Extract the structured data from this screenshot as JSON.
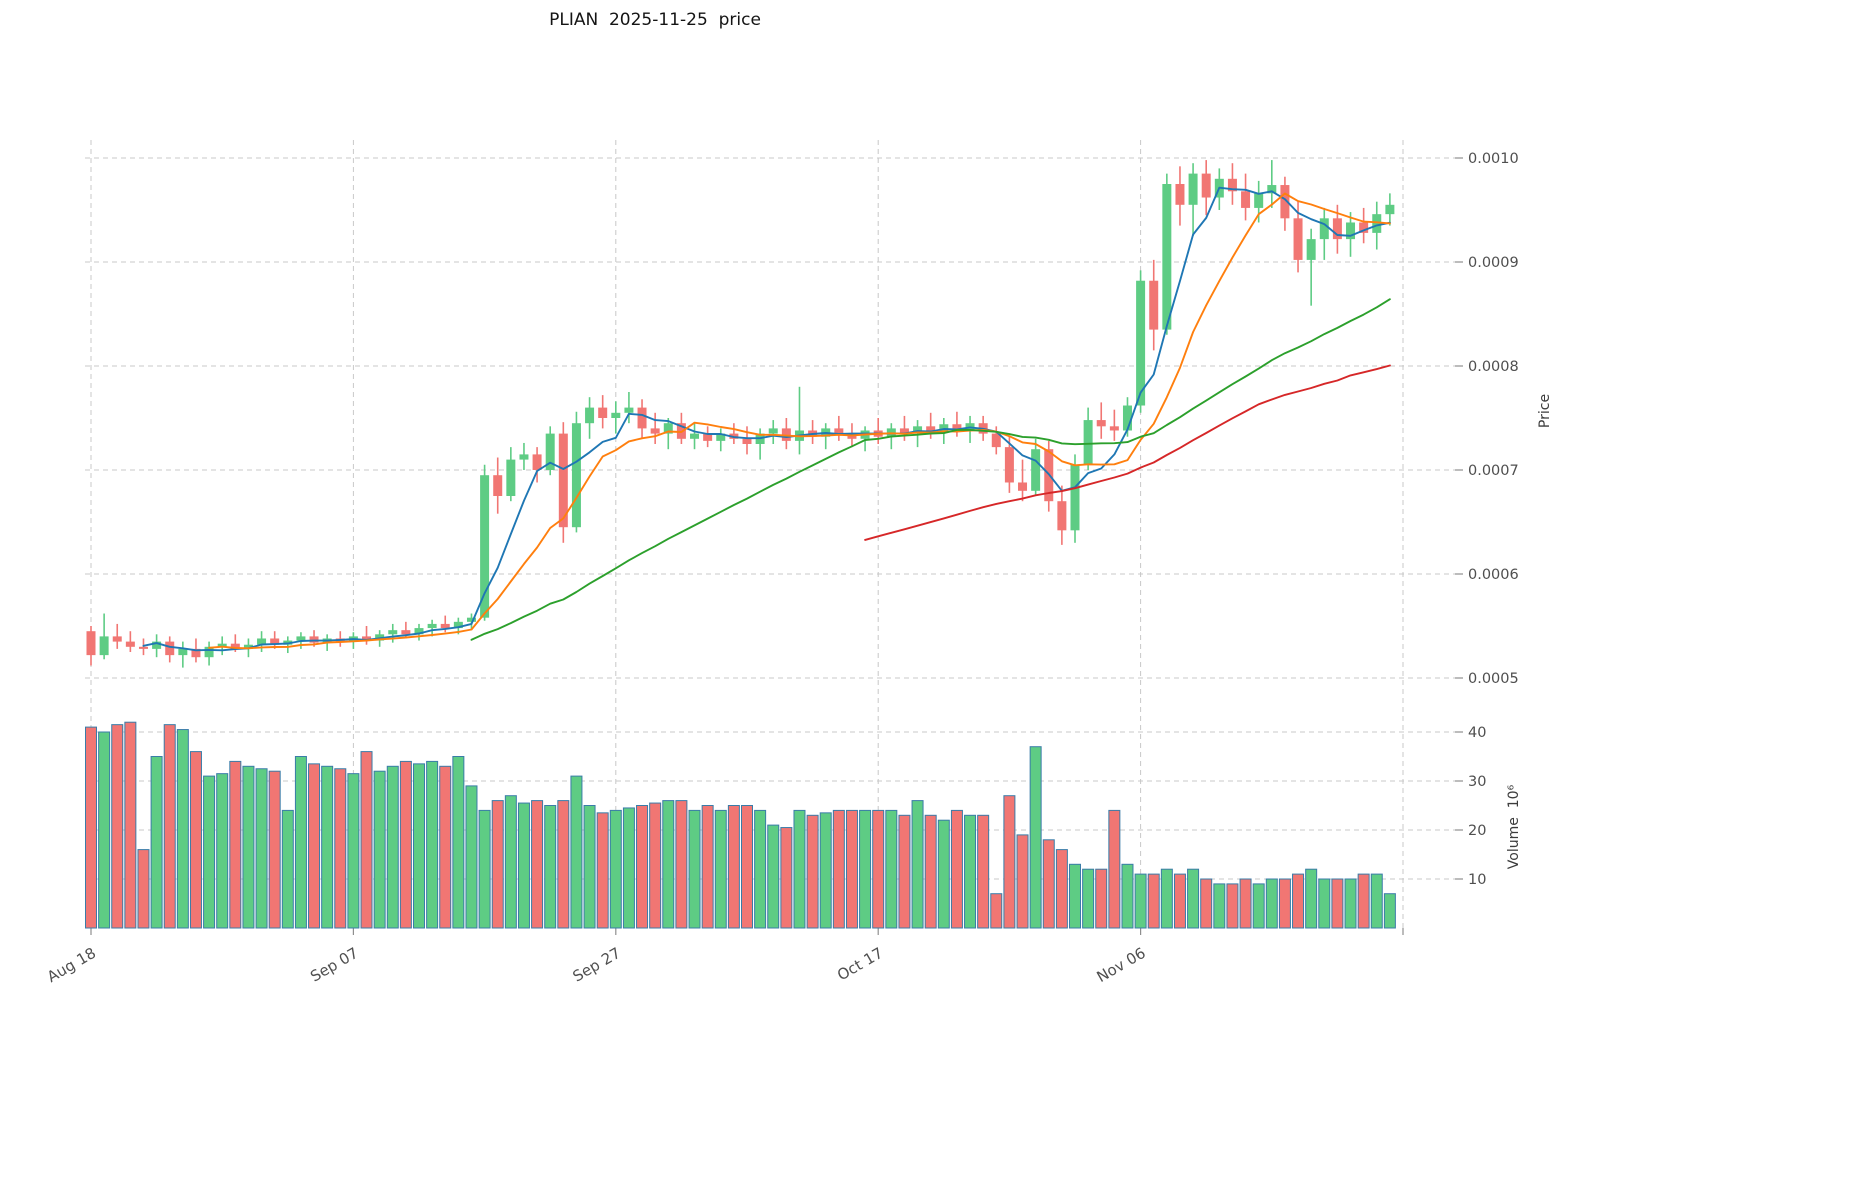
{
  "title": "PLIAN  2025-11-25  price",
  "colors": {
    "background": "#ffffff",
    "grid": "#c8c8c8",
    "tick_text": "#4f4f4f",
    "title_text": "#141414"
  },
  "chart_data": [
    {
      "type": "candlestick",
      "title": "PLIAN  2025-11-25  price",
      "ylabel": "Price",
      "up_color": "#5ecc84",
      "down_color": "#f17673",
      "grid": true,
      "y_tick_labels": [
        "0.0005",
        "0.0006",
        "0.0007",
        "0.0008",
        "0.0009",
        "0.0010"
      ],
      "y_tick_values": [
        0.0005,
        0.0006,
        0.0007,
        0.0008,
        0.0009,
        0.001
      ],
      "ylim": [
        0.000488,
        0.001022
      ],
      "x_ticks": [
        {
          "index": 0,
          "label": "Aug 18"
        },
        {
          "index": 20,
          "label": "Sep 07"
        },
        {
          "index": 40,
          "label": "Sep 27"
        },
        {
          "index": 60,
          "label": "Oct 17"
        },
        {
          "index": 80,
          "label": "Nov 06"
        },
        {
          "index": 100,
          "label": ""
        }
      ],
      "moving_averages": [
        {
          "window": 5,
          "color": "#1f77b4"
        },
        {
          "window": 10,
          "color": "#ff7f0e"
        },
        {
          "window": 30,
          "color": "#2ca02c"
        },
        {
          "window": 60,
          "color": "#d62728"
        }
      ],
      "open": [
        0.000545,
        0.000522,
        0.00054,
        0.000535,
        0.00053,
        0.000528,
        0.000535,
        0.000522,
        0.000528,
        0.00052,
        0.00053,
        0.000533,
        0.000528,
        0.000532,
        0.000538,
        0.000532,
        0.000536,
        0.00054,
        0.000534,
        0.000538,
        0.000535,
        0.00054,
        0.000536,
        0.000542,
        0.000546,
        0.000542,
        0.000548,
        0.000552,
        0.000548,
        0.000554,
        0.000558,
        0.000695,
        0.000675,
        0.00071,
        0.000715,
        0.0007,
        0.000735,
        0.000645,
        0.000745,
        0.00076,
        0.00075,
        0.000755,
        0.00076,
        0.00074,
        0.000735,
        0.000745,
        0.00073,
        0.000735,
        0.000728,
        0.000735,
        0.00073,
        0.000725,
        0.000735,
        0.00074,
        0.000728,
        0.000738,
        0.000732,
        0.00074,
        0.000735,
        0.00073,
        0.000738,
        0.000732,
        0.00074,
        0.000735,
        0.000742,
        0.000736,
        0.000744,
        0.000738,
        0.000745,
        0.000735,
        0.000722,
        0.000688,
        0.00068,
        0.00072,
        0.00067,
        0.000642,
        0.000705,
        0.000748,
        0.000742,
        0.000738,
        0.000762,
        0.000882,
        0.000835,
        0.000975,
        0.000955,
        0.000985,
        0.000962,
        0.00098,
        0.000968,
        0.000952,
        0.000966,
        0.000974,
        0.000942,
        0.000902,
        0.000922,
        0.000942,
        0.000922,
        0.000938,
        0.000928,
        0.000946
      ],
      "high": [
        0.00055,
        0.000562,
        0.000552,
        0.000545,
        0.000538,
        0.000542,
        0.00054,
        0.000535,
        0.000538,
        0.000535,
        0.00054,
        0.000542,
        0.000538,
        0.000545,
        0.000545,
        0.00054,
        0.000544,
        0.000546,
        0.000542,
        0.000545,
        0.000544,
        0.00055,
        0.000546,
        0.000552,
        0.000554,
        0.000552,
        0.000556,
        0.00056,
        0.000558,
        0.000562,
        0.000705,
        0.000712,
        0.000722,
        0.000726,
        0.000722,
        0.000742,
        0.000746,
        0.000756,
        0.00077,
        0.000772,
        0.000766,
        0.000775,
        0.000768,
        0.000755,
        0.00075,
        0.000755,
        0.000745,
        0.000742,
        0.00074,
        0.000745,
        0.000742,
        0.00074,
        0.000748,
        0.00075,
        0.00078,
        0.000748,
        0.000745,
        0.000752,
        0.000745,
        0.000742,
        0.00075,
        0.000745,
        0.000752,
        0.000748,
        0.000755,
        0.00075,
        0.000756,
        0.000752,
        0.000752,
        0.000742,
        0.000732,
        0.00071,
        0.00073,
        0.000728,
        0.000685,
        0.000715,
        0.00076,
        0.000765,
        0.000758,
        0.00077,
        0.000892,
        0.000902,
        0.000985,
        0.000992,
        0.000995,
        0.000998,
        0.00099,
        0.000995,
        0.000985,
        0.000978,
        0.000998,
        0.000982,
        0.000958,
        0.000932,
        0.000952,
        0.000955,
        0.000948,
        0.000952,
        0.000958,
        0.000966
      ],
      "low": [
        0.000512,
        0.000518,
        0.000528,
        0.000525,
        0.000522,
        0.00052,
        0.000515,
        0.00051,
        0.000515,
        0.000512,
        0.000522,
        0.000525,
        0.00052,
        0.000525,
        0.000528,
        0.000524,
        0.000528,
        0.00053,
        0.000526,
        0.00053,
        0.000528,
        0.000532,
        0.00053,
        0.000534,
        0.000538,
        0.000536,
        0.00054,
        0.000544,
        0.000542,
        0.000546,
        0.000555,
        0.000658,
        0.00067,
        0.0007,
        0.000688,
        0.000695,
        0.00063,
        0.00064,
        0.00073,
        0.00074,
        0.000735,
        0.000745,
        0.00073,
        0.000725,
        0.00072,
        0.000725,
        0.00072,
        0.000722,
        0.000718,
        0.000725,
        0.000715,
        0.00071,
        0.000725,
        0.00072,
        0.000715,
        0.000725,
        0.00072,
        0.000728,
        0.000722,
        0.000718,
        0.000725,
        0.00072,
        0.000728,
        0.000722,
        0.00073,
        0.000725,
        0.000732,
        0.000726,
        0.000728,
        0.000715,
        0.000678,
        0.00067,
        0.000675,
        0.00066,
        0.000628,
        0.00063,
        0.0007,
        0.00073,
        0.000728,
        0.000732,
        0.000755,
        0.000815,
        0.00083,
        0.000935,
        0.000925,
        0.000945,
        0.00095,
        0.000955,
        0.00094,
        0.000938,
        0.000952,
        0.00093,
        0.00089,
        0.000858,
        0.000902,
        0.000908,
        0.000905,
        0.000918,
        0.000912,
        0.000935
      ],
      "close": [
        0.000522,
        0.00054,
        0.000535,
        0.00053,
        0.000528,
        0.000535,
        0.000522,
        0.000528,
        0.00052,
        0.00053,
        0.000533,
        0.000528,
        0.000532,
        0.000538,
        0.000532,
        0.000536,
        0.00054,
        0.000534,
        0.000538,
        0.000535,
        0.00054,
        0.000536,
        0.000542,
        0.000546,
        0.000542,
        0.000548,
        0.000552,
        0.000548,
        0.000554,
        0.000558,
        0.000695,
        0.000675,
        0.00071,
        0.000715,
        0.0007,
        0.000735,
        0.000645,
        0.000745,
        0.00076,
        0.00075,
        0.000755,
        0.00076,
        0.00074,
        0.000735,
        0.000745,
        0.00073,
        0.000735,
        0.000728,
        0.000735,
        0.00073,
        0.000725,
        0.000735,
        0.00074,
        0.000728,
        0.000738,
        0.000732,
        0.00074,
        0.000735,
        0.00073,
        0.000738,
        0.000732,
        0.00074,
        0.000735,
        0.000742,
        0.000736,
        0.000744,
        0.000738,
        0.000745,
        0.000735,
        0.000722,
        0.000688,
        0.00068,
        0.00072,
        0.00067,
        0.000642,
        0.000705,
        0.000748,
        0.000742,
        0.000738,
        0.000762,
        0.000882,
        0.000835,
        0.000975,
        0.000955,
        0.000985,
        0.000962,
        0.00098,
        0.000968,
        0.000952,
        0.000966,
        0.000974,
        0.000942,
        0.000902,
        0.000922,
        0.000942,
        0.000922,
        0.000938,
        0.000928,
        0.000946,
        0.000955
      ]
    },
    {
      "type": "bar",
      "ylabel": "Volume  10⁶",
      "unit": "1e6",
      "y_ticks": [
        10,
        20,
        30,
        40
      ],
      "ylim": [
        0,
        46
      ],
      "edge_color": "#3a7ca8",
      "values": [
        41,
        40,
        41.5,
        42,
        16,
        35,
        41.5,
        40.5,
        36,
        31,
        31.5,
        34,
        33,
        32.5,
        32,
        24,
        35,
        33.5,
        33,
        32.5,
        31.5,
        36,
        32,
        33,
        34,
        33.5,
        34,
        33,
        35,
        29,
        24,
        26,
        27,
        25.5,
        26,
        25,
        26,
        31,
        25,
        23.5,
        24,
        24.5,
        25,
        25.5,
        26,
        26,
        24,
        25,
        24,
        25,
        25,
        24,
        21,
        20.5,
        24,
        23,
        23.5,
        24,
        24,
        24,
        24,
        24,
        23,
        26,
        23,
        22,
        24,
        23,
        23,
        7,
        27,
        19,
        37,
        18,
        16,
        13,
        12,
        12,
        24,
        13,
        11,
        11,
        12,
        11,
        12,
        10,
        9,
        9,
        10,
        9,
        10,
        10,
        11,
        12,
        10,
        10,
        10,
        11,
        11,
        7
      ]
    }
  ]
}
